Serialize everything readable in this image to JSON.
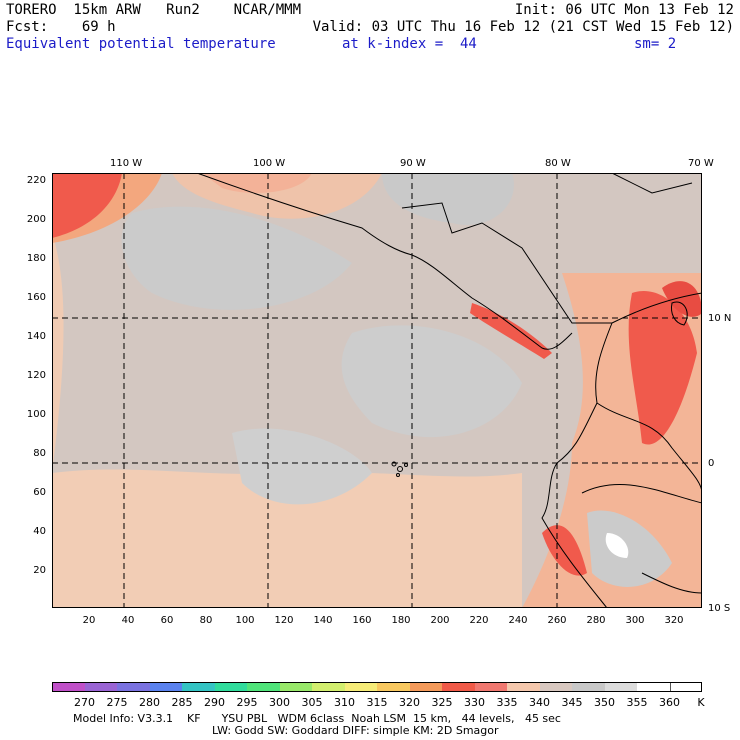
{
  "header": {
    "line1_left": "TORERO  15km ARW   Run2    NCAR/MMM",
    "line1_right": "Init: 06 UTC Mon 13 Feb 12",
    "line2_left": "Fcst:    69 h",
    "line2_right": "Valid: 03 UTC Thu 16 Feb 12 (21 CST Wed 15 Feb 12)",
    "field_name": "Equivalent potential temperature",
    "level": "at k-index =  44",
    "smooth": "sm= 2"
  },
  "map": {
    "top_lon_labels": [
      "110 W",
      "100 W",
      "90 W",
      "80 W",
      "70 W"
    ],
    "right_lat_labels": [
      "10 N",
      "0",
      "10 S"
    ],
    "y_ticks": [
      "220",
      "200",
      "180",
      "160",
      "140",
      "120",
      "100",
      "80",
      "60",
      "40",
      "20"
    ],
    "x_ticks": [
      "20",
      "40",
      "60",
      "80",
      "100",
      "120",
      "140",
      "160",
      "180",
      "200",
      "220",
      "240",
      "260",
      "280",
      "300",
      "320"
    ],
    "colors": {
      "background_field": "#d3c7c1",
      "cool_region": "#cbcbcb",
      "warm_region": "#f5c8ad",
      "hot_region": "#f3a77e",
      "very_hot_region": "#f05a4c",
      "coast": "#000000",
      "grid": "#000000"
    }
  },
  "colorbar": {
    "labels": [
      "270",
      "275",
      "280",
      "285",
      "290",
      "295",
      "300",
      "305",
      "310",
      "315",
      "320",
      "325",
      "330",
      "335",
      "340",
      "345",
      "350",
      "355",
      "360"
    ],
    "unit": "K",
    "colors": [
      "#c050c8",
      "#9a64d4",
      "#7a72e0",
      "#5a82ee",
      "#34c4c4",
      "#30dc9c",
      "#50e47a",
      "#98e86a",
      "#d2ee6e",
      "#f6ec78",
      "#f8c860",
      "#f49a5a",
      "#f05a48",
      "#f07870",
      "#f5c8ad",
      "#d8c8c0",
      "#c8c8c8",
      "#dcdcdc",
      "#ffffff"
    ]
  },
  "footer": {
    "line1": "Model Info: V3.3.1    KF      YSU PBL   WDM 6class  Noah LSM  15 km,   44 levels,   45 sec",
    "line2": "LW: Godd SW: Goddard DIFF: simple KM: 2D Smagor"
  }
}
